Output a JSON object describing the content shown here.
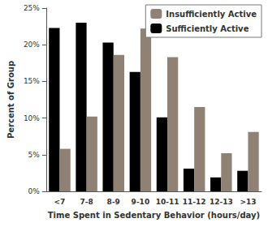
{
  "chart_data": {
    "type": "bar",
    "x_label": "Time Spent in Sedentary Behavior (hours/day)",
    "y_label": "Percent of Group",
    "categories": [
      "<7",
      "7-8",
      "8-9",
      "9-10",
      "10-11",
      "11-12",
      "12-13",
      ">13"
    ],
    "series": [
      {
        "name": "Sufficiently Active",
        "color": "#000000",
        "values": [
          22.3,
          23.0,
          20.3,
          16.3,
          10.1,
          3.1,
          1.9,
          2.8
        ]
      },
      {
        "name": "Insufficiently Active",
        "color": "#8f8174",
        "values": [
          5.8,
          10.2,
          18.6,
          22.2,
          18.3,
          11.5,
          5.2,
          8.1
        ]
      }
    ],
    "ylim": [
      0,
      25
    ],
    "yticks": [
      {
        "value": 0,
        "label": "0%"
      },
      {
        "value": 5,
        "label": "5%"
      },
      {
        "value": 10,
        "label": "10%"
      },
      {
        "value": 15,
        "label": "15%"
      },
      {
        "value": 20,
        "label": "20%"
      },
      {
        "value": 25,
        "label": "25%"
      }
    ],
    "grid": false,
    "legend": "upper right"
  }
}
